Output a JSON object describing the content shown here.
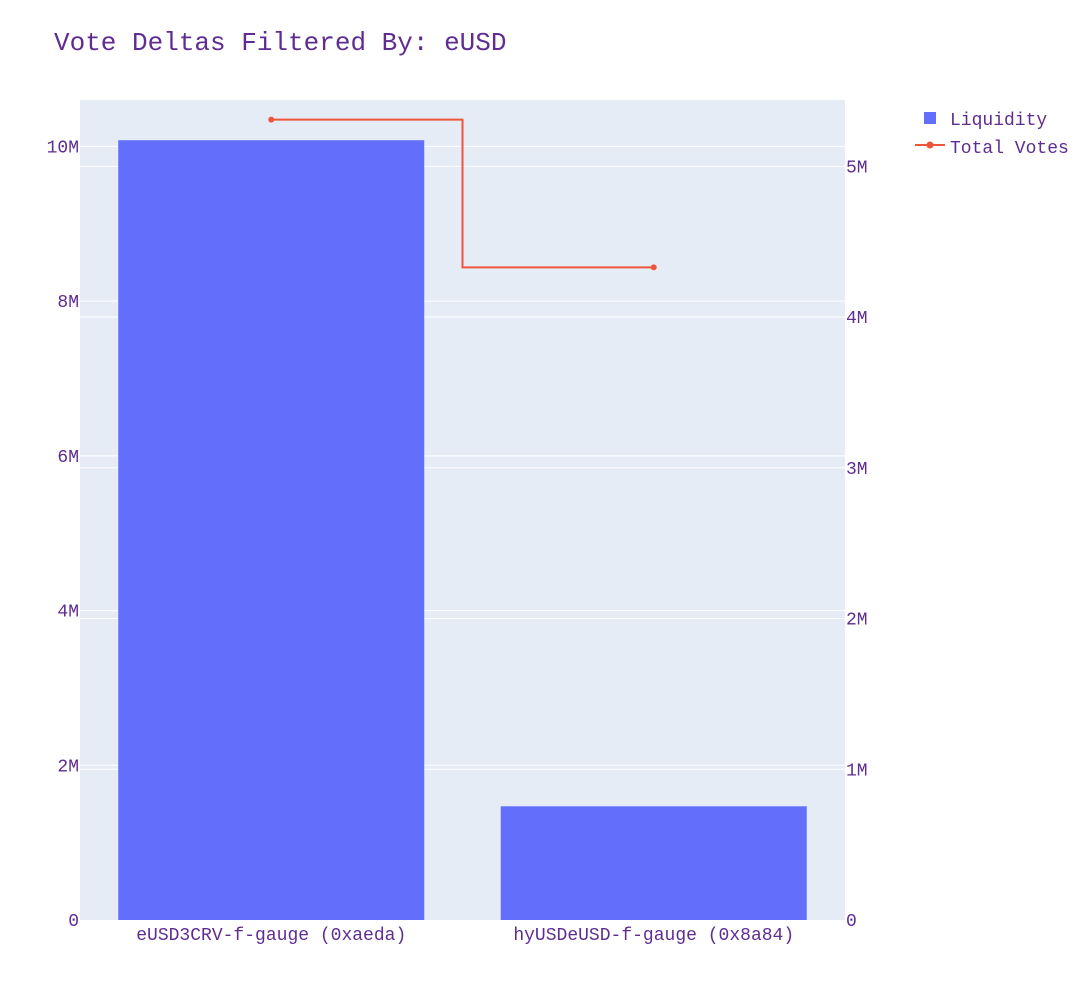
{
  "chart_data": {
    "type": "bar",
    "title": "Vote Deltas Filtered By: eUSD",
    "categories": [
      "eUSD3CRV-f-gauge (0xaeda)",
      "hyUSDeUSD-f-gauge (0x8a84)"
    ],
    "series": [
      {
        "name": "Liquidity",
        "type": "bar",
        "axis": "left",
        "values": [
          10080000,
          1470000
        ],
        "color": "#636efa"
      },
      {
        "name": "Total Votes",
        "type": "line",
        "line_shape": "step",
        "axis": "right",
        "values": [
          5310000,
          4330000
        ],
        "color": "#ef553b"
      }
    ],
    "y_left": {
      "range": [
        0,
        10600000
      ],
      "ticks": [
        0,
        2000000,
        4000000,
        6000000,
        8000000,
        10000000
      ],
      "tick_labels": [
        "0",
        "2M",
        "4M",
        "6M",
        "8M",
        "10M"
      ]
    },
    "y_right": {
      "range": [
        0,
        5440000
      ],
      "ticks": [
        0,
        1000000,
        2000000,
        3000000,
        4000000,
        5000000
      ],
      "tick_labels": [
        "0",
        "1M",
        "2M",
        "3M",
        "4M",
        "5M"
      ]
    },
    "grid": true,
    "legend_position": "top-right",
    "colors": {
      "plot_background": "#e5ecf6",
      "grid": "#ffffff",
      "text": "#5f2d91"
    }
  }
}
